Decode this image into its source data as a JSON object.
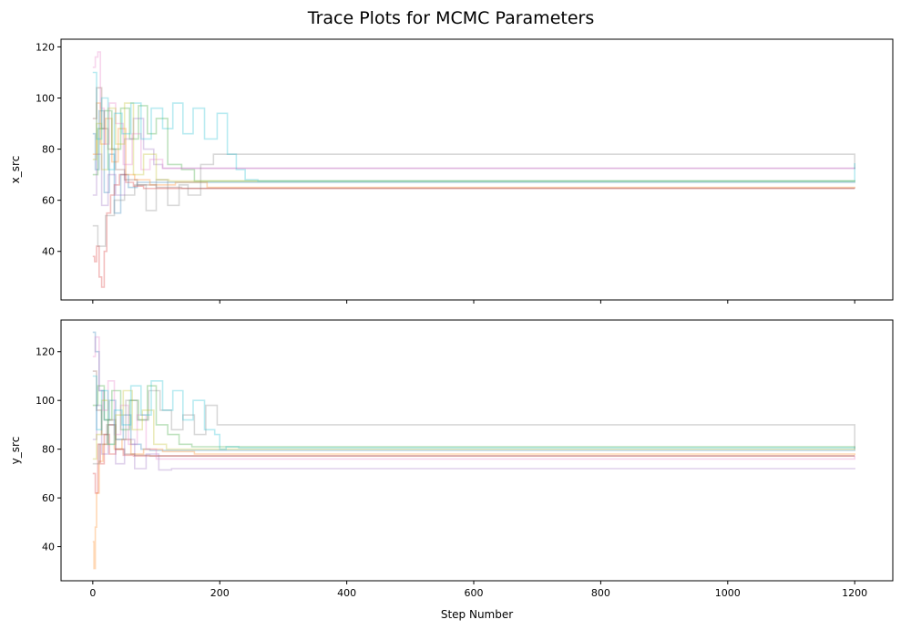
{
  "figure": {
    "title": "Trace Plots for MCMC Parameters"
  },
  "chart_data": [
    {
      "type": "line",
      "panel": "top",
      "title": "",
      "xlabel": "",
      "ylabel": "x_src",
      "xlim": [
        -50,
        1260
      ],
      "ylim": [
        21,
        123
      ],
      "xticks": [
        0,
        200,
        400,
        600,
        800,
        1000,
        1200
      ],
      "yticks": [
        40,
        60,
        80,
        100,
        120
      ],
      "x_ticklabels_visible": false,
      "grid": false,
      "alpha": 0.3,
      "series": [
        {
          "color": "#1f77b4",
          "x": [
            0,
            4,
            10,
            18,
            26,
            34,
            44,
            56,
            70,
            1200
          ],
          "y": [
            86,
            72,
            95,
            63,
            78,
            55,
            70,
            65,
            67,
            67.3
          ]
        },
        {
          "color": "#ff7f0e",
          "x": [
            0,
            6,
            12,
            20,
            30,
            40,
            52,
            66,
            90,
            130,
            180,
            1200
          ],
          "y": [
            78,
            98,
            82,
            92,
            75,
            88,
            70,
            68,
            66,
            67,
            65,
            64.8
          ]
        },
        {
          "color": "#2ca02c",
          "x": [
            0,
            8,
            18,
            30,
            44,
            58,
            72,
            86,
            100,
            118,
            140,
            160,
            1200
          ],
          "y": [
            70,
            88,
            95,
            80,
            96,
            84,
            97,
            86,
            92,
            74,
            72,
            67.5,
            67.3
          ]
        },
        {
          "color": "#d62728",
          "x": [
            0,
            3,
            6,
            10,
            14,
            18,
            22,
            28,
            34,
            42,
            52,
            64,
            80,
            1200
          ],
          "y": [
            38,
            36,
            42,
            30,
            26,
            40,
            55,
            62,
            66,
            70,
            67,
            65.5,
            64.6,
            64.6
          ]
        },
        {
          "color": "#9467bd",
          "x": [
            0,
            6,
            14,
            24,
            36,
            50,
            64,
            80,
            96,
            110,
            1200
          ],
          "y": [
            62,
            78,
            58,
            70,
            62,
            84,
            92,
            80,
            74,
            72.5,
            72.3
          ]
        },
        {
          "color": "#8c564b",
          "x": [
            0,
            6,
            14,
            24,
            36,
            50,
            70,
            100,
            140,
            1200
          ],
          "y": [
            92,
            104,
            88,
            80,
            72,
            68,
            66,
            65,
            64.7,
            64.6
          ]
        },
        {
          "color": "#e377c2",
          "x": [
            0,
            4,
            8,
            12,
            18,
            26,
            36,
            48,
            62,
            76,
            90,
            110,
            1200
          ],
          "y": [
            112,
            116,
            118,
            96,
            82,
            98,
            90,
            74,
            86,
            72,
            76,
            72.5,
            72.3
          ]
        },
        {
          "color": "#7f7f7f",
          "x": [
            0,
            8,
            20,
            34,
            50,
            66,
            84,
            100,
            118,
            136,
            150,
            170,
            190,
            1200
          ],
          "y": [
            50,
            42,
            54,
            60,
            62,
            66,
            56,
            68,
            58,
            66,
            62,
            74,
            78,
            72.3
          ]
        },
        {
          "color": "#bcbd22",
          "x": [
            0,
            6,
            14,
            24,
            36,
            50,
            64,
            80,
            100,
            120,
            1200
          ],
          "y": [
            76,
            90,
            72,
            96,
            82,
            98,
            70,
            78,
            68,
            67.5,
            67.3
          ]
        },
        {
          "color": "#17becf",
          "x": [
            0,
            6,
            14,
            24,
            34,
            46,
            60,
            76,
            92,
            110,
            126,
            142,
            158,
            176,
            196,
            212,
            226,
            240,
            260,
            1200
          ],
          "y": [
            110,
            84,
            100,
            72,
            94,
            86,
            98,
            84,
            96,
            88,
            98,
            86,
            96,
            84,
            94,
            78,
            72,
            68,
            67.5,
            74.5
          ]
        }
      ]
    },
    {
      "type": "line",
      "panel": "bottom",
      "title": "",
      "xlabel": "Step Number",
      "ylabel": "y_src",
      "xlim": [
        -50,
        1260
      ],
      "ylim": [
        26,
        133
      ],
      "xticks": [
        0,
        200,
        400,
        600,
        800,
        1000,
        1200
      ],
      "yticks": [
        40,
        60,
        80,
        100,
        120
      ],
      "x_ticklabels_visible": true,
      "grid": false,
      "alpha": 0.3,
      "series": [
        {
          "color": "#1f77b4",
          "x": [
            0,
            4,
            10,
            18,
            26,
            36,
            48,
            60,
            76,
            90,
            1200
          ],
          "y": [
            128,
            120,
            104,
            92,
            100,
            84,
            94,
            82,
            80,
            79.5,
            80
          ]
        },
        {
          "color": "#ff7f0e",
          "x": [
            0,
            2,
            4,
            6,
            10,
            16,
            24,
            34,
            46,
            60,
            80,
            110,
            160,
            1200
          ],
          "y": [
            42,
            31,
            48,
            62,
            75,
            82,
            90,
            80,
            84,
            78,
            80,
            79,
            78,
            77.5
          ]
        },
        {
          "color": "#2ca02c",
          "x": [
            0,
            8,
            18,
            30,
            44,
            58,
            72,
            86,
            100,
            118,
            136,
            156,
            1200
          ],
          "y": [
            98,
            106,
            92,
            104,
            88,
            100,
            92,
            106,
            90,
            86,
            82,
            81,
            80.5
          ]
        },
        {
          "color": "#d62728",
          "x": [
            0,
            4,
            8,
            12,
            18,
            26,
            36,
            48,
            64,
            1200
          ],
          "y": [
            70,
            62,
            82,
            74,
            86,
            78,
            80,
            77.5,
            77.2,
            77.2
          ]
        },
        {
          "color": "#9467bd",
          "x": [
            0,
            6,
            14,
            24,
            36,
            50,
            66,
            84,
            104,
            124,
            1200
          ],
          "y": [
            84,
            98,
            78,
            90,
            74,
            84,
            72,
            78,
            71.5,
            72,
            71.8
          ]
        },
        {
          "color": "#8c564b",
          "x": [
            0,
            6,
            14,
            24,
            36,
            50,
            66,
            90,
            1200
          ],
          "y": [
            112,
            96,
            86,
            92,
            80,
            78,
            77.5,
            77.2,
            77.2
          ]
        },
        {
          "color": "#e377c2",
          "x": [
            0,
            4,
            10,
            16,
            24,
            34,
            44,
            56,
            70,
            84,
            100,
            1200
          ],
          "y": [
            118,
            126,
            104,
            96,
            108,
            86,
            98,
            82,
            94,
            80,
            76,
            77.2
          ]
        },
        {
          "color": "#7f7f7f",
          "x": [
            0,
            10,
            22,
            36,
            52,
            70,
            88,
            106,
            124,
            142,
            160,
            178,
            196,
            1200
          ],
          "y": [
            74,
            82,
            90,
            84,
            100,
            92,
            104,
            96,
            88,
            94,
            86,
            98,
            90,
            80
          ]
        },
        {
          "color": "#bcbd22",
          "x": [
            0,
            6,
            14,
            24,
            36,
            48,
            62,
            78,
            96,
            116,
            1200
          ],
          "y": [
            76,
            86,
            100,
            82,
            94,
            104,
            88,
            96,
            82,
            80,
            80.5
          ]
        },
        {
          "color": "#17becf",
          "x": [
            0,
            6,
            14,
            24,
            34,
            46,
            60,
            76,
            92,
            110,
            126,
            142,
            158,
            176,
            192,
            200,
            210,
            230,
            1200
          ],
          "y": [
            110,
            88,
            104,
            82,
            96,
            90,
            106,
            94,
            108,
            96,
            104,
            92,
            100,
            88,
            86,
            80,
            81,
            80.5,
            80.8
          ]
        }
      ]
    }
  ]
}
